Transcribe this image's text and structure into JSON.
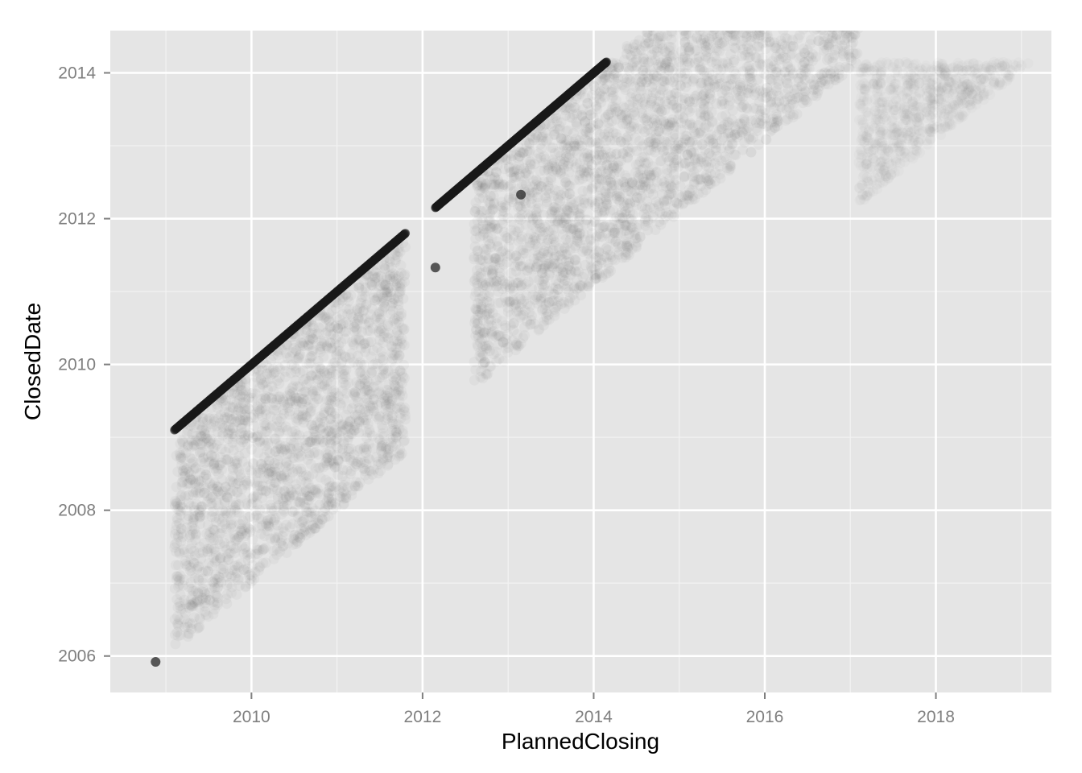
{
  "chart_data": {
    "type": "scatter",
    "title": "",
    "xlabel": "PlannedClosing",
    "ylabel": "ClosedDate",
    "xlim": [
      2008.35,
      2019.35
    ],
    "ylim": [
      2005.5,
      2014.58
    ],
    "x_ticks": [
      2010,
      2012,
      2014,
      2016,
      2018
    ],
    "y_ticks": [
      2006,
      2008,
      2010,
      2012,
      2014
    ],
    "x_tick_labels": [
      "2010",
      "2012",
      "2014",
      "2016",
      "2018"
    ],
    "y_tick_labels": [
      "2006",
      "2008",
      "2010",
      "2012",
      "2014"
    ],
    "grid": true,
    "legend": "none",
    "colors": {
      "panel_background": "#e5e5e5",
      "grid_major": "#ffffff",
      "grid_minor": "#f2f2f2",
      "point": "#1a1a1a"
    },
    "point_alpha": 0.03,
    "series": [
      {
        "values": "dense semi-transparent point clouds",
        "regions": [
          {
            "shape": "parallelogram",
            "vertices": [
              [
                2009.1,
                2009.1
              ],
              [
                2011.8,
                2011.8
              ],
              [
                2011.8,
                2008.8
              ],
              [
                2009.1,
                2006.1
              ]
            ]
          },
          {
            "shape": "parallelogram",
            "vertices": [
              [
                2012.6,
                2012.6
              ],
              [
                2014.15,
                2014.15
              ],
              [
                2017.1,
                2014.15
              ],
              [
                2012.6,
                2009.7
              ]
            ]
          },
          {
            "shape": "triangle",
            "vertices": [
              [
                2017.1,
                2014.15
              ],
              [
                2019.1,
                2014.15
              ],
              [
                2017.1,
                2012.2
              ]
            ]
          }
        ],
        "diagonal_segments": [
          {
            "from": [
              2009.1,
              2009.1
            ],
            "to": [
              2011.8,
              2011.8
            ]
          },
          {
            "from": [
              2012.15,
              2012.15
            ],
            "to": [
              2014.15,
              2014.15
            ]
          }
        ],
        "outliers": [
          [
            2012.15,
            2011.33
          ],
          [
            2013.15,
            2012.33
          ],
          [
            2008.88,
            2005.92
          ]
        ]
      }
    ]
  }
}
